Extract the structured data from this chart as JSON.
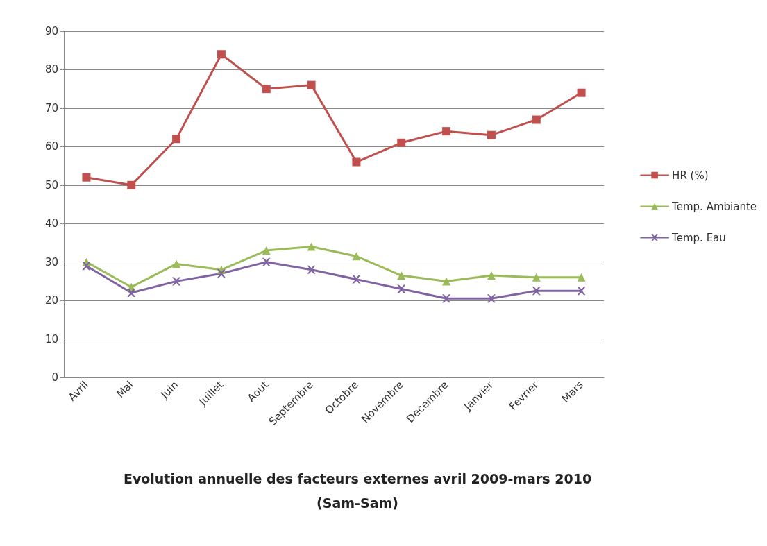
{
  "chart_data": {
    "type": "line",
    "title": "Evolution annuelle des facteurs externes avril 2009-mars 2010",
    "subtitle": "(Sam-Sam)",
    "categories": [
      "Avril",
      "Mai",
      "Juin",
      "Juillet",
      "Aout",
      "Septembre",
      "Octobre",
      "Novembre",
      "Decembre",
      "Janvier",
      "Fevrier",
      "Mars"
    ],
    "series": [
      {
        "name": "HR (%)",
        "color": "#c0504d",
        "marker": "square",
        "values": [
          52,
          50,
          62,
          84,
          75,
          76,
          56,
          61,
          64,
          63,
          67,
          74
        ]
      },
      {
        "name": "Temp. Ambiante",
        "color": "#9bbb59",
        "marker": "triangle",
        "values": [
          30,
          23.5,
          29.5,
          28,
          33,
          34,
          31.5,
          26.5,
          25,
          26.5,
          26,
          26
        ]
      },
      {
        "name": "Temp. Eau",
        "color": "#8064a2",
        "marker": "cross",
        "values": [
          29,
          22,
          25,
          27,
          30,
          28,
          25.5,
          23,
          20.5,
          20.5,
          22.5,
          22.5
        ]
      }
    ],
    "ylim": [
      0,
      90
    ],
    "yticks": [
      0,
      10,
      20,
      30,
      40,
      50,
      60,
      70,
      80,
      90
    ],
    "grid": "y",
    "legend": "right",
    "line_style": "solid"
  }
}
